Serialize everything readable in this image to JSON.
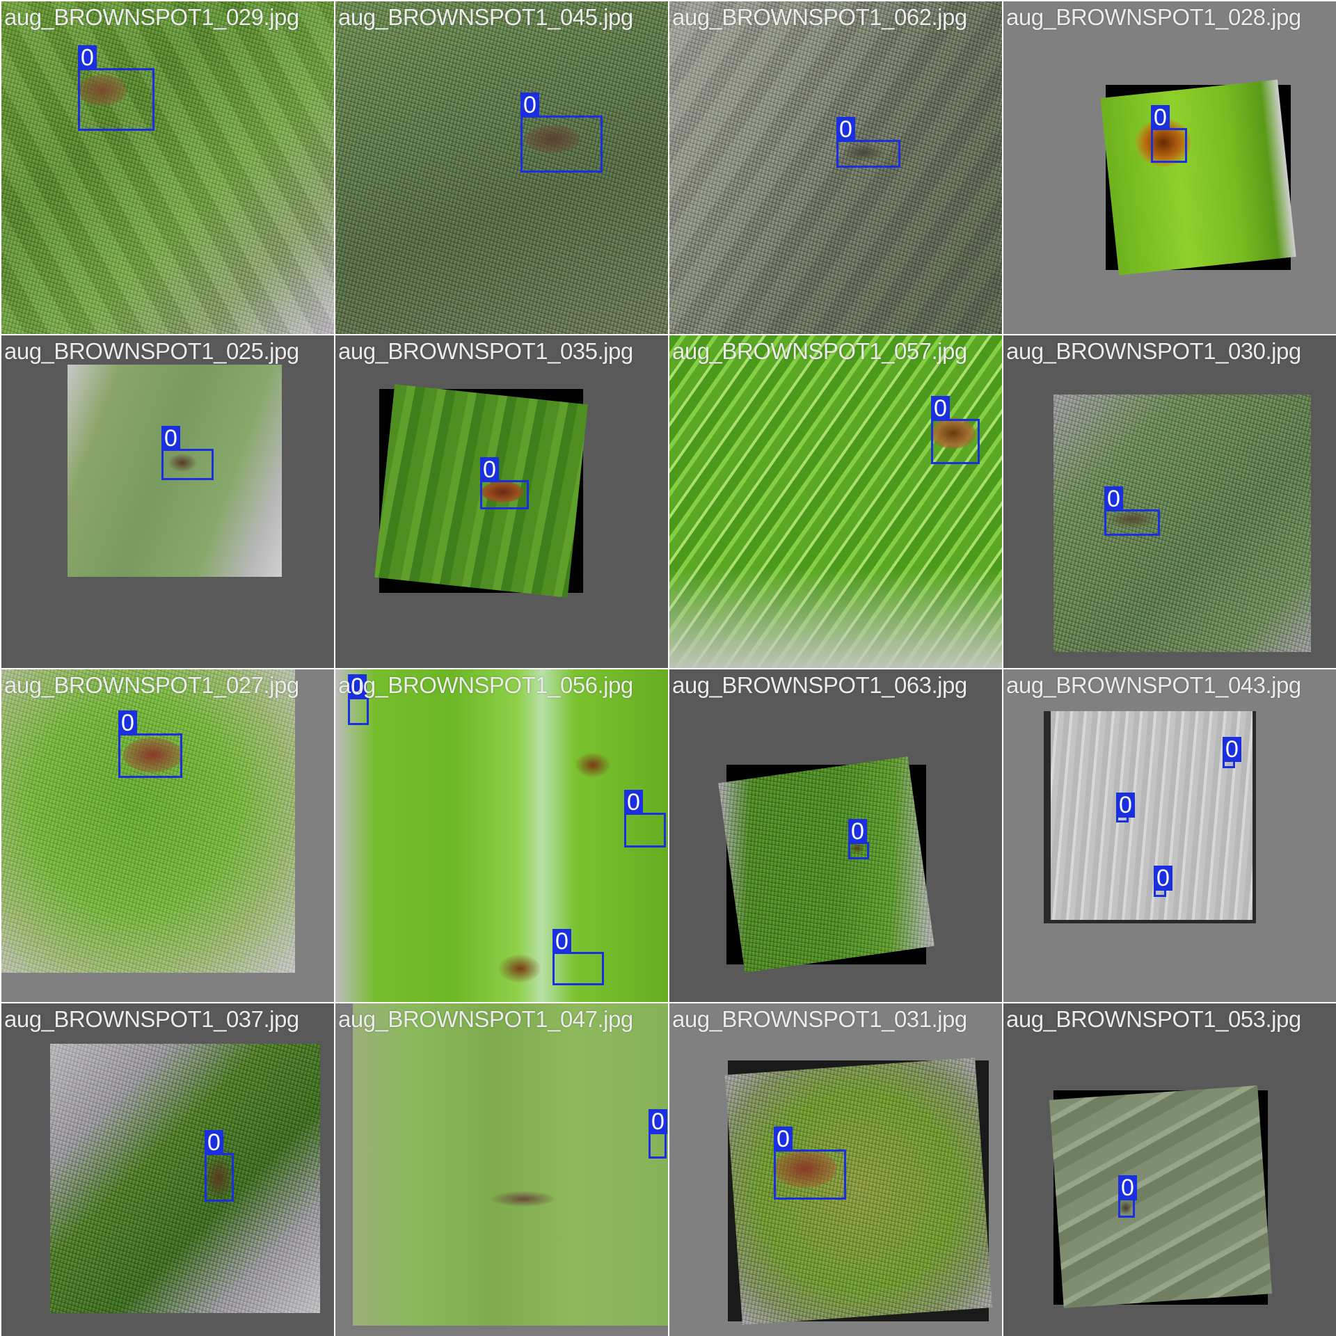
{
  "tiles": [
    {
      "label": "aug_BROWNSPOT1_029.jpg",
      "boxes": [
        {
          "class_label": "0"
        }
      ]
    },
    {
      "label": "aug_BROWNSPOT1_045.jpg",
      "boxes": [
        {
          "class_label": "0"
        }
      ]
    },
    {
      "label": "aug_BROWNSPOT1_062.jpg",
      "boxes": [
        {
          "class_label": "0"
        }
      ]
    },
    {
      "label": "aug_BROWNSPOT1_028.jpg",
      "boxes": [
        {
          "class_label": "0"
        }
      ]
    },
    {
      "label": "aug_BROWNSPOT1_025.jpg",
      "boxes": [
        {
          "class_label": "0"
        }
      ]
    },
    {
      "label": "aug_BROWNSPOT1_035.jpg",
      "boxes": [
        {
          "class_label": "0"
        }
      ]
    },
    {
      "label": "aug_BROWNSPOT1_057.jpg",
      "boxes": [
        {
          "class_label": "0"
        }
      ]
    },
    {
      "label": "aug_BROWNSPOT1_030.jpg",
      "boxes": [
        {
          "class_label": "0"
        }
      ]
    },
    {
      "label": "aug_BROWNSPOT1_027.jpg",
      "boxes": [
        {
          "class_label": "0"
        }
      ]
    },
    {
      "label": "aug_BROWNSPOT1_056.jpg",
      "boxes": [
        {
          "class_label": "0"
        },
        {
          "class_label": "0"
        },
        {
          "class_label": "0"
        }
      ]
    },
    {
      "label": "aug_BROWNSPOT1_063.jpg",
      "boxes": [
        {
          "class_label": "0"
        }
      ]
    },
    {
      "label": "aug_BROWNSPOT1_043.jpg",
      "boxes": [
        {
          "class_label": "0"
        },
        {
          "class_label": "0"
        },
        {
          "class_label": "0"
        }
      ]
    },
    {
      "label": "aug_BROWNSPOT1_037.jpg",
      "boxes": [
        {
          "class_label": "0"
        }
      ]
    },
    {
      "label": "aug_BROWNSPOT1_047.jpg",
      "boxes": [
        {
          "class_label": "0"
        }
      ]
    },
    {
      "label": "aug_BROWNSPOT1_031.jpg",
      "boxes": [
        {
          "class_label": "0"
        }
      ]
    },
    {
      "label": "aug_BROWNSPOT1_053.jpg",
      "boxes": [
        {
          "class_label": "0"
        }
      ]
    }
  ]
}
